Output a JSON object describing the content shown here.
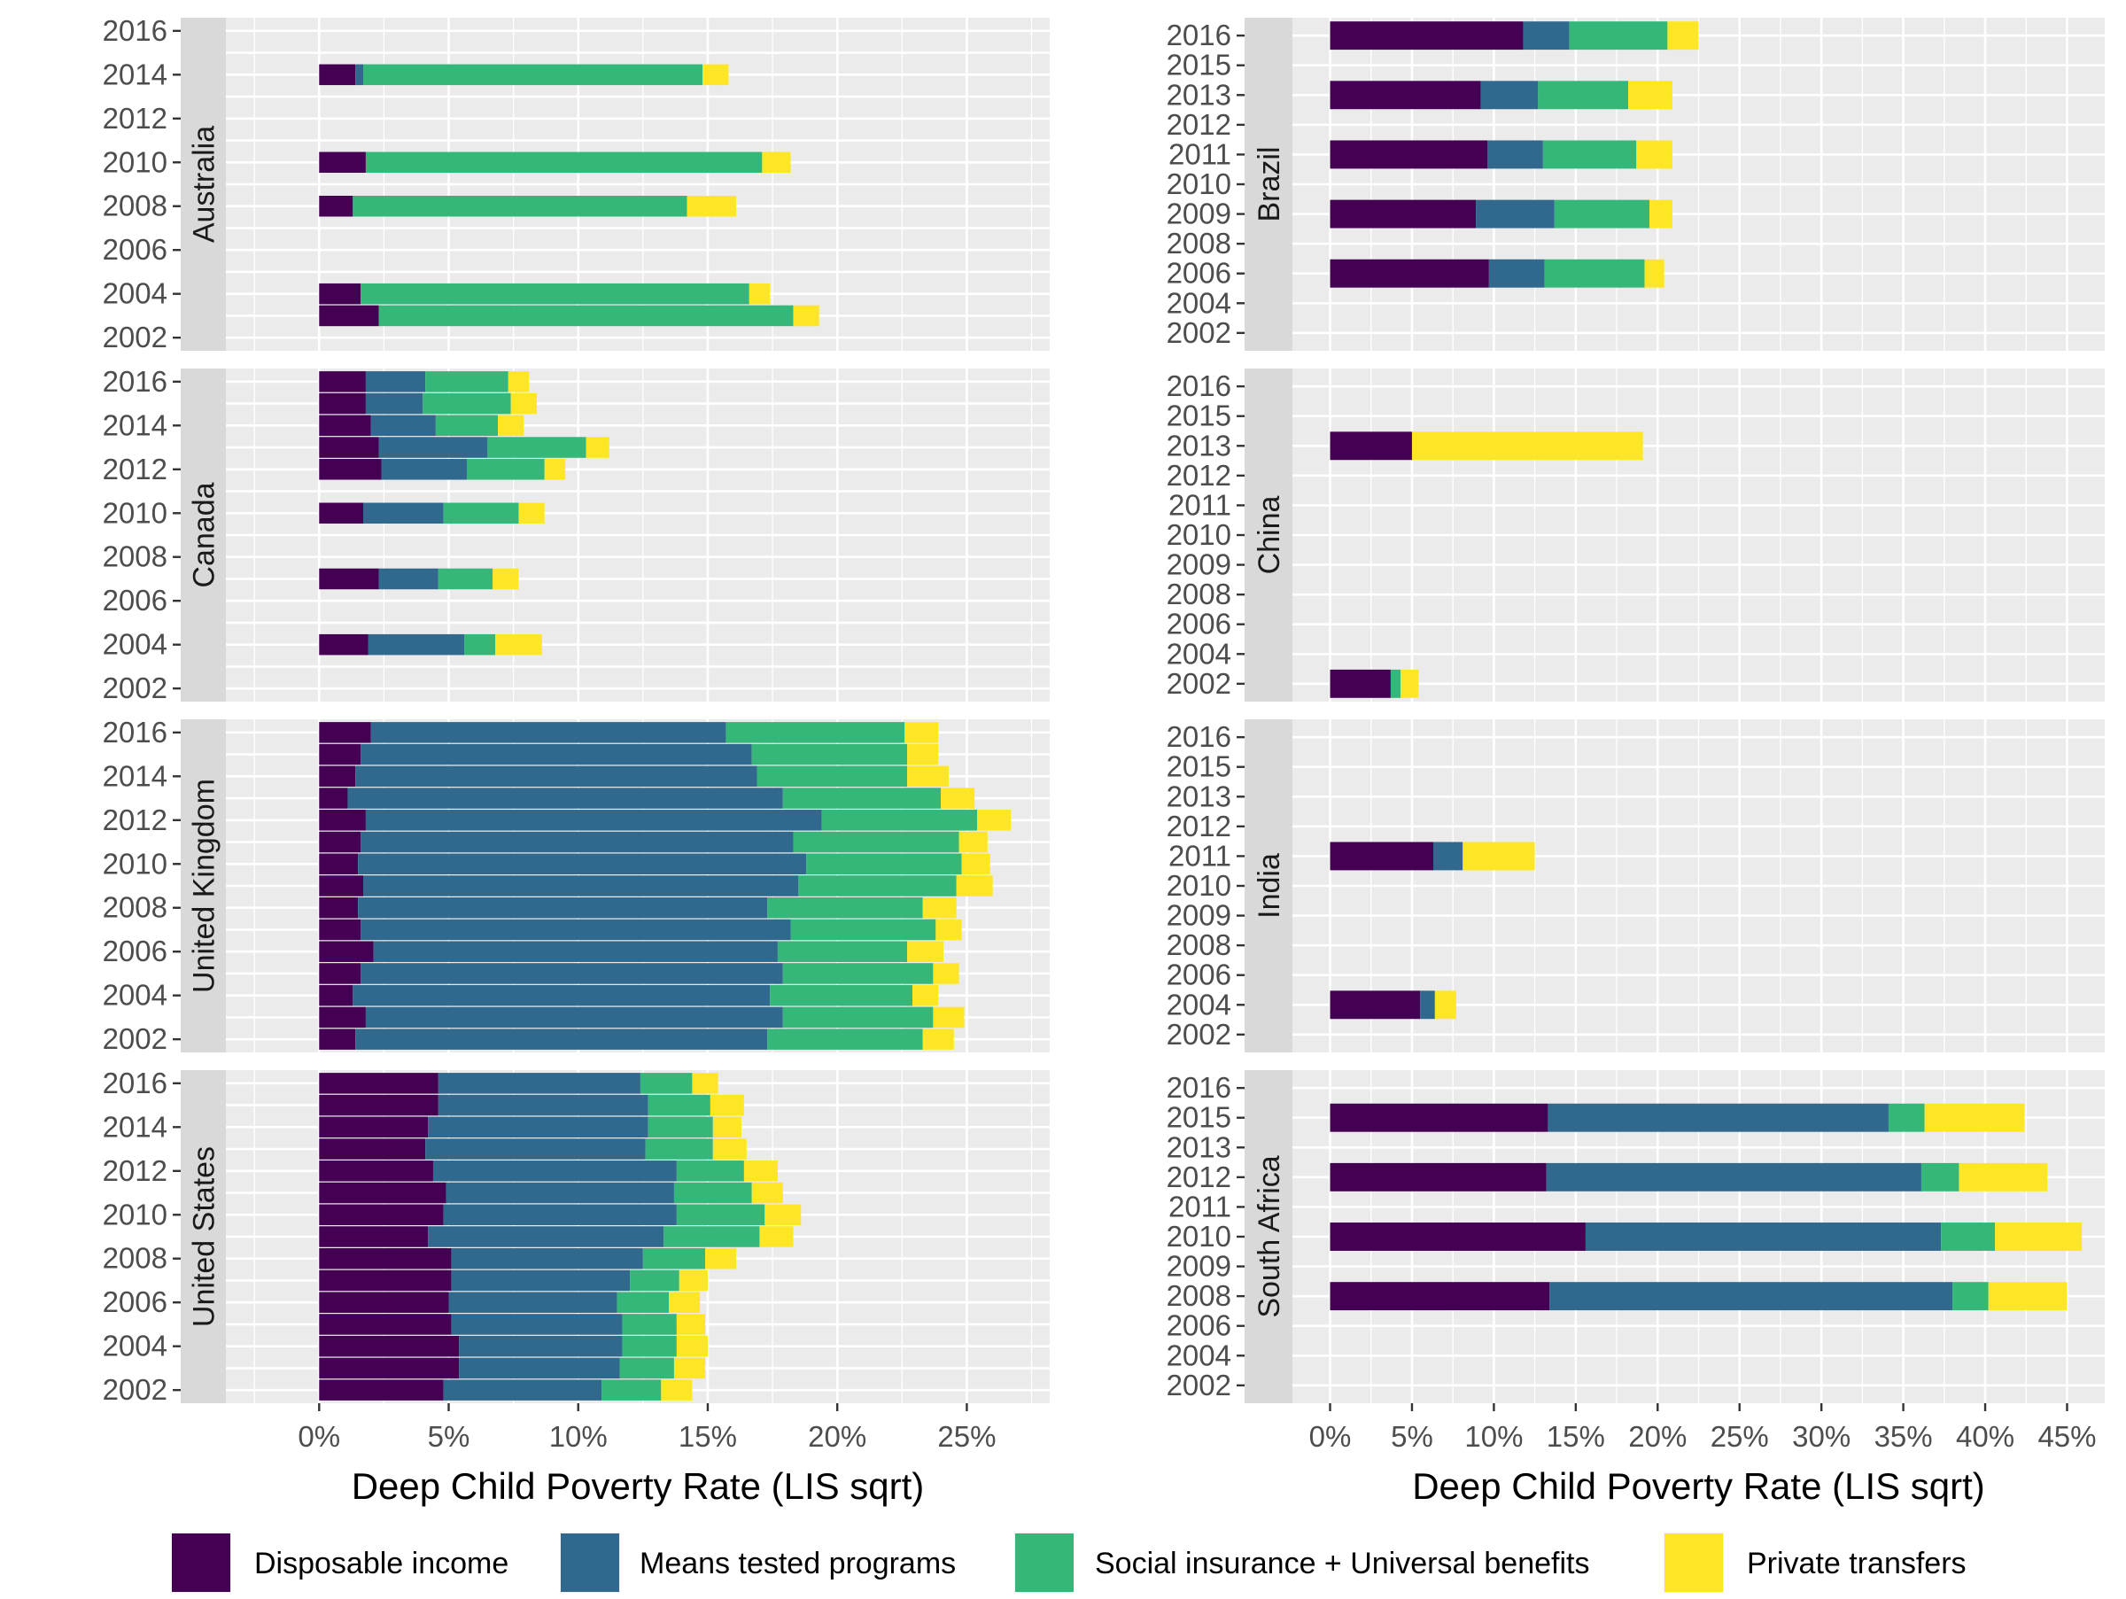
{
  "chart_data": {
    "type": "bar",
    "orientation": "horizontal",
    "stacked": true,
    "xlabel": "Deep Child Poverty Rate (LIS sqrt)",
    "legend": {
      "position": "bottom",
      "entries": [
        {
          "name": "Disposable income",
          "color": "#440154"
        },
        {
          "name": "Means tested programs",
          "color": "#31688e"
        },
        {
          "name": "Social insurance + Universal benefits",
          "color": "#35b779"
        },
        {
          "name": "Private transfers",
          "color": "#fde725"
        }
      ]
    },
    "columns": [
      {
        "x_ticks": [
          0,
          5,
          10,
          15,
          20,
          25
        ],
        "x_tick_labels": [
          "0%",
          "5%",
          "10%",
          "15%",
          "20%",
          "25%"
        ],
        "xlim": [
          -3.6,
          28.2
        ],
        "facets": [
          {
            "name": "Australia",
            "y_categories": [
              "2002",
              "2003",
              "2004",
              "2005",
              "2006",
              "2007",
              "2008",
              "2009",
              "2010",
              "2011",
              "2012",
              "2013",
              "2014",
              "2015",
              "2016"
            ],
            "y_tick_labels": [
              "2002",
              "2004",
              "2006",
              "2008",
              "2010",
              "2012",
              "2014",
              "2016"
            ],
            "bars": [
              {
                "year": "2003",
                "values": [
                  2.3,
                  0,
                  16.0,
                  1.0
                ]
              },
              {
                "year": "2004",
                "values": [
                  1.6,
                  0,
                  15.0,
                  0.8
                ]
              },
              {
                "year": "2008",
                "values": [
                  1.3,
                  0,
                  12.9,
                  1.9
                ]
              },
              {
                "year": "2010",
                "values": [
                  1.8,
                  0,
                  15.3,
                  1.1
                ]
              },
              {
                "year": "2014",
                "values": [
                  1.4,
                  0.3,
                  13.1,
                  1.0
                ]
              }
            ]
          },
          {
            "name": "Canada",
            "y_categories": [
              "2002",
              "2003",
              "2004",
              "2005",
              "2006",
              "2007",
              "2008",
              "2009",
              "2010",
              "2011",
              "2012",
              "2013",
              "2014",
              "2015",
              "2016"
            ],
            "y_tick_labels": [
              "2002",
              "2004",
              "2006",
              "2008",
              "2010",
              "2012",
              "2014",
              "2016"
            ],
            "bars": [
              {
                "year": "2004",
                "values": [
                  1.9,
                  3.7,
                  1.2,
                  1.8
                ]
              },
              {
                "year": "2007",
                "values": [
                  2.3,
                  2.3,
                  2.1,
                  1.0
                ]
              },
              {
                "year": "2010",
                "values": [
                  1.7,
                  3.1,
                  2.9,
                  1.0
                ]
              },
              {
                "year": "2012",
                "values": [
                  2.4,
                  3.3,
                  3.0,
                  0.8
                ]
              },
              {
                "year": "2013",
                "values": [
                  2.3,
                  4.2,
                  3.8,
                  0.9
                ]
              },
              {
                "year": "2014",
                "values": [
                  2.0,
                  2.5,
                  2.4,
                  1.0
                ]
              },
              {
                "year": "2015",
                "values": [
                  1.8,
                  2.2,
                  3.4,
                  1.0
                ]
              },
              {
                "year": "2016",
                "values": [
                  1.8,
                  2.3,
                  3.2,
                  0.8
                ]
              }
            ]
          },
          {
            "name": "United Kingdom",
            "y_categories": [
              "2002",
              "2003",
              "2004",
              "2005",
              "2006",
              "2007",
              "2008",
              "2009",
              "2010",
              "2011",
              "2012",
              "2013",
              "2014",
              "2015",
              "2016"
            ],
            "y_tick_labels": [
              "2002",
              "2004",
              "2006",
              "2008",
              "2010",
              "2012",
              "2014",
              "2016"
            ],
            "bars": [
              {
                "year": "2002",
                "values": [
                  1.4,
                  15.9,
                  6.0,
                  1.2
                ]
              },
              {
                "year": "2003",
                "values": [
                  1.8,
                  16.1,
                  5.8,
                  1.2
                ]
              },
              {
                "year": "2004",
                "values": [
                  1.3,
                  16.1,
                  5.5,
                  1.0
                ]
              },
              {
                "year": "2005",
                "values": [
                  1.6,
                  16.3,
                  5.8,
                  1.0
                ]
              },
              {
                "year": "2006",
                "values": [
                  2.1,
                  15.6,
                  5.0,
                  1.4
                ]
              },
              {
                "year": "2007",
                "values": [
                  1.6,
                  16.6,
                  5.6,
                  1.0
                ]
              },
              {
                "year": "2008",
                "values": [
                  1.5,
                  15.8,
                  6.0,
                  1.3
                ]
              },
              {
                "year": "2009",
                "values": [
                  1.7,
                  16.8,
                  6.1,
                  1.4
                ]
              },
              {
                "year": "2010",
                "values": [
                  1.5,
                  17.3,
                  6.0,
                  1.1
                ]
              },
              {
                "year": "2011",
                "values": [
                  1.6,
                  16.7,
                  6.4,
                  1.1
                ]
              },
              {
                "year": "2012",
                "values": [
                  1.8,
                  17.6,
                  6.0,
                  1.3
                ]
              },
              {
                "year": "2013",
                "values": [
                  1.1,
                  16.8,
                  6.1,
                  1.3
                ]
              },
              {
                "year": "2014",
                "values": [
                  1.4,
                  15.5,
                  5.8,
                  1.6
                ]
              },
              {
                "year": "2015",
                "values": [
                  1.6,
                  15.1,
                  6.0,
                  1.2
                ]
              },
              {
                "year": "2016",
                "values": [
                  2.0,
                  13.7,
                  6.9,
                  1.3
                ]
              }
            ]
          },
          {
            "name": "United States",
            "y_categories": [
              "2002",
              "2003",
              "2004",
              "2005",
              "2006",
              "2007",
              "2008",
              "2009",
              "2010",
              "2011",
              "2012",
              "2013",
              "2014",
              "2015",
              "2016"
            ],
            "y_tick_labels": [
              "2002",
              "2004",
              "2006",
              "2008",
              "2010",
              "2012",
              "2014",
              "2016"
            ],
            "bars": [
              {
                "year": "2002",
                "values": [
                  4.8,
                  6.1,
                  2.3,
                  1.2
                ]
              },
              {
                "year": "2003",
                "values": [
                  5.4,
                  6.2,
                  2.1,
                  1.2
                ]
              },
              {
                "year": "2004",
                "values": [
                  5.4,
                  6.3,
                  2.1,
                  1.2
                ]
              },
              {
                "year": "2005",
                "values": [
                  5.1,
                  6.6,
                  2.1,
                  1.1
                ]
              },
              {
                "year": "2006",
                "values": [
                  5.0,
                  6.5,
                  2.0,
                  1.2
                ]
              },
              {
                "year": "2007",
                "values": [
                  5.1,
                  6.9,
                  1.9,
                  1.1
                ]
              },
              {
                "year": "2008",
                "values": [
                  5.1,
                  7.4,
                  2.4,
                  1.2
                ]
              },
              {
                "year": "2009",
                "values": [
                  4.2,
                  9.1,
                  3.7,
                  1.3
                ]
              },
              {
                "year": "2010",
                "values": [
                  4.8,
                  9.0,
                  3.4,
                  1.4
                ]
              },
              {
                "year": "2011",
                "values": [
                  4.9,
                  8.8,
                  3.0,
                  1.2
                ]
              },
              {
                "year": "2012",
                "values": [
                  4.4,
                  9.4,
                  2.6,
                  1.3
                ]
              },
              {
                "year": "2013",
                "values": [
                  4.1,
                  8.5,
                  2.6,
                  1.3
                ]
              },
              {
                "year": "2014",
                "values": [
                  4.2,
                  8.5,
                  2.5,
                  1.1
                ]
              },
              {
                "year": "2015",
                "values": [
                  4.6,
                  8.1,
                  2.4,
                  1.3
                ]
              },
              {
                "year": "2016",
                "values": [
                  4.6,
                  7.8,
                  2.0,
                  1.0
                ]
              }
            ]
          }
        ]
      },
      {
        "x_ticks": [
          0,
          5,
          10,
          15,
          20,
          25,
          30,
          35,
          40,
          45
        ],
        "x_tick_labels": [
          "0%",
          "5%",
          "10%",
          "15%",
          "20%",
          "25%",
          "30%",
          "35%",
          "40%",
          "45%"
        ],
        "xlim": [
          -2.3,
          47.3
        ],
        "facets": [
          {
            "name": "Brazil",
            "y_categories": [
              "2002",
              "2004",
              "2006",
              "2008",
              "2009",
              "2010",
              "2011",
              "2012",
              "2013",
              "2015",
              "2016"
            ],
            "y_tick_labels": [
              "2002",
              "2004",
              "2006",
              "2008",
              "2009",
              "2010",
              "2011",
              "2012",
              "2013",
              "2015",
              "2016"
            ],
            "bars": [
              {
                "year": "2006",
                "values": [
                  9.7,
                  3.4,
                  6.1,
                  1.2
                ]
              },
              {
                "year": "2009",
                "values": [
                  8.9,
                  4.8,
                  5.8,
                  1.4
                ]
              },
              {
                "year": "2011",
                "values": [
                  9.6,
                  3.4,
                  5.7,
                  2.2
                ]
              },
              {
                "year": "2013",
                "values": [
                  9.2,
                  3.5,
                  5.5,
                  2.7
                ]
              },
              {
                "year": "2016",
                "values": [
                  11.8,
                  2.8,
                  6.0,
                  1.9
                ]
              }
            ]
          },
          {
            "name": "China",
            "y_categories": [
              "2002",
              "2004",
              "2006",
              "2008",
              "2009",
              "2010",
              "2011",
              "2012",
              "2013",
              "2015",
              "2016"
            ],
            "y_tick_labels": [
              "2002",
              "2004",
              "2006",
              "2008",
              "2009",
              "2010",
              "2011",
              "2012",
              "2013",
              "2015",
              "2016"
            ],
            "bars": [
              {
                "year": "2002",
                "values": [
                  3.7,
                  0,
                  0.6,
                  1.1
                ]
              },
              {
                "year": "2013",
                "values": [
                  5.0,
                  0,
                  0,
                  14.1
                ]
              }
            ]
          },
          {
            "name": "India",
            "y_categories": [
              "2002",
              "2004",
              "2006",
              "2008",
              "2009",
              "2010",
              "2011",
              "2012",
              "2013",
              "2015",
              "2016"
            ],
            "y_tick_labels": [
              "2002",
              "2004",
              "2006",
              "2008",
              "2009",
              "2010",
              "2011",
              "2012",
              "2013",
              "2015",
              "2016"
            ],
            "bars": [
              {
                "year": "2004",
                "values": [
                  5.5,
                  0.9,
                  0,
                  1.3
                ]
              },
              {
                "year": "2011",
                "values": [
                  6.3,
                  1.8,
                  0,
                  4.4
                ]
              }
            ]
          },
          {
            "name": "South Africa",
            "y_categories": [
              "2002",
              "2004",
              "2006",
              "2008",
              "2009",
              "2010",
              "2011",
              "2012",
              "2013",
              "2015",
              "2016"
            ],
            "y_tick_labels": [
              "2002",
              "2004",
              "2006",
              "2008",
              "2009",
              "2010",
              "2011",
              "2012",
              "2013",
              "2015",
              "2016"
            ],
            "bars": [
              {
                "year": "2008",
                "values": [
                  13.4,
                  24.6,
                  2.2,
                  4.8
                ]
              },
              {
                "year": "2010",
                "values": [
                  15.6,
                  21.7,
                  3.3,
                  5.3
                ]
              },
              {
                "year": "2012",
                "values": [
                  13.2,
                  22.9,
                  2.3,
                  5.4
                ]
              },
              {
                "year": "2015",
                "values": [
                  13.3,
                  20.8,
                  2.2,
                  6.1
                ]
              }
            ]
          }
        ]
      }
    ]
  }
}
